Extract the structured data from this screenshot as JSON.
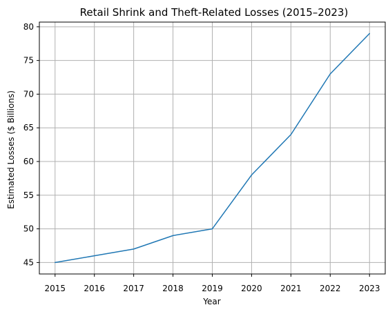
{
  "chart_data": {
    "type": "line",
    "title": "Retail Shrink and Theft-Related Losses (2015–2023)",
    "xlabel": "Year",
    "ylabel": "Estimated Losses ($ Billions)",
    "x": [
      2015,
      2016,
      2017,
      2018,
      2019,
      2020,
      2021,
      2022,
      2023
    ],
    "series": [
      {
        "values": [
          45,
          46,
          47,
          49,
          50,
          58,
          64,
          73,
          79
        ]
      }
    ],
    "xlim": [
      2014.6,
      2023.4
    ],
    "ylim": [
      43.3,
      80.7
    ],
    "xticks": [
      "2015",
      "2016",
      "2017",
      "2018",
      "2019",
      "2020",
      "2021",
      "2022",
      "2023"
    ],
    "yticks": [
      "45",
      "50",
      "55",
      "60",
      "65",
      "70",
      "75",
      "80"
    ],
    "grid": true,
    "legend": "none",
    "line_color": "#1f77b4",
    "grid_color": "#b0b0b0"
  }
}
